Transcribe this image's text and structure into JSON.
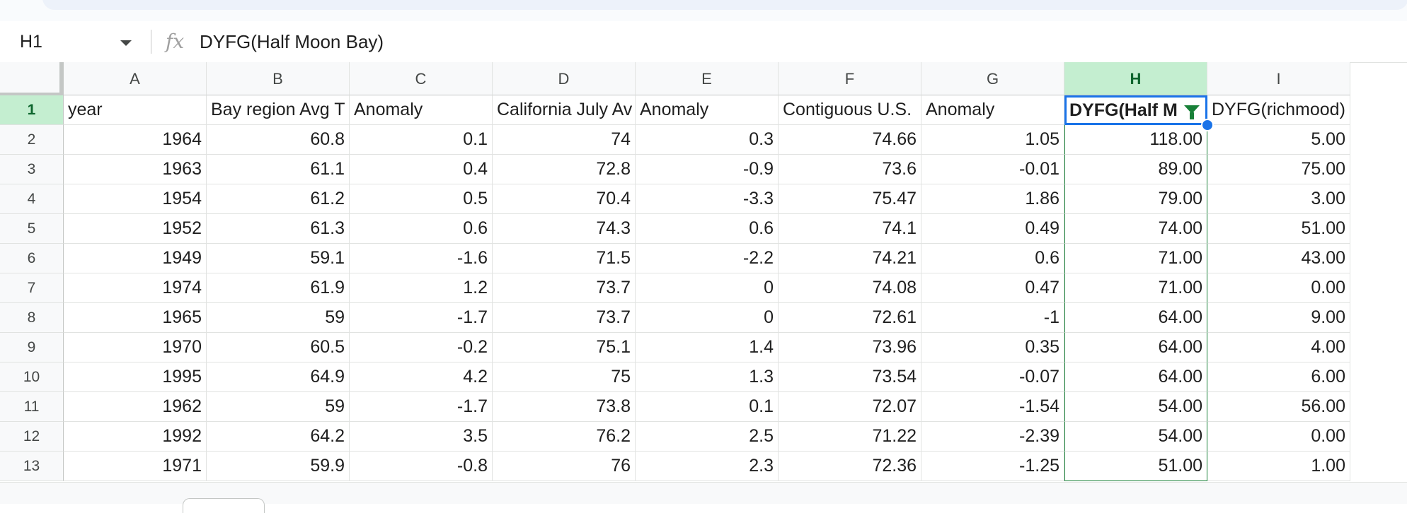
{
  "formula_bar": {
    "name_box": "H1",
    "formula": "DYFG(Half Moon Bay)"
  },
  "columns": [
    "A",
    "B",
    "C",
    "D",
    "E",
    "F",
    "G",
    "H",
    "I"
  ],
  "selected": {
    "column": "H",
    "row": "1"
  },
  "header_row": {
    "row": "1",
    "cells": [
      "year",
      "Bay region Avg T",
      "Anomaly",
      "California July Av",
      "Anomaly",
      "Contiguous U.S.",
      "Anomaly",
      "DYFG(Half M",
      "DYFG(richmood)"
    ]
  },
  "rows": [
    {
      "row": "2",
      "cells": [
        "1964",
        "60.8",
        "0.1",
        "74",
        "0.3",
        "74.66",
        "1.05",
        "118.00",
        "5.00"
      ]
    },
    {
      "row": "3",
      "cells": [
        "1963",
        "61.1",
        "0.4",
        "72.8",
        "-0.9",
        "73.6",
        "-0.01",
        "89.00",
        "75.00"
      ]
    },
    {
      "row": "4",
      "cells": [
        "1954",
        "61.2",
        "0.5",
        "70.4",
        "-3.3",
        "75.47",
        "1.86",
        "79.00",
        "3.00"
      ]
    },
    {
      "row": "5",
      "cells": [
        "1952",
        "61.3",
        "0.6",
        "74.3",
        "0.6",
        "74.1",
        "0.49",
        "74.00",
        "51.00"
      ]
    },
    {
      "row": "6",
      "cells": [
        "1949",
        "59.1",
        "-1.6",
        "71.5",
        "-2.2",
        "74.21",
        "0.6",
        "71.00",
        "43.00"
      ]
    },
    {
      "row": "7",
      "cells": [
        "1974",
        "61.9",
        "1.2",
        "73.7",
        "0",
        "74.08",
        "0.47",
        "71.00",
        "0.00"
      ]
    },
    {
      "row": "8",
      "cells": [
        "1965",
        "59",
        "-1.7",
        "73.7",
        "0",
        "72.61",
        "-1",
        "64.00",
        "9.00"
      ]
    },
    {
      "row": "9",
      "cells": [
        "1970",
        "60.5",
        "-0.2",
        "75.1",
        "1.4",
        "73.96",
        "0.35",
        "64.00",
        "4.00"
      ]
    },
    {
      "row": "10",
      "cells": [
        "1995",
        "64.9",
        "4.2",
        "75",
        "1.3",
        "73.54",
        "-0.07",
        "64.00",
        "6.00"
      ]
    },
    {
      "row": "11",
      "cells": [
        "1962",
        "59",
        "-1.7",
        "73.8",
        "0.1",
        "72.07",
        "-1.54",
        "54.00",
        "56.00"
      ]
    },
    {
      "row": "12",
      "cells": [
        "1992",
        "64.2",
        "3.5",
        "76.2",
        "2.5",
        "71.22",
        "-2.39",
        "54.00",
        "0.00"
      ]
    },
    {
      "row": "13",
      "cells": [
        "1971",
        "59.9",
        "-0.8",
        "76",
        "2.3",
        "72.36",
        "-1.25",
        "51.00",
        "1.00"
      ]
    }
  ],
  "colors": {
    "selection_green": "#188038",
    "selection_header_bg": "#c4eed0",
    "active_border": "#1a73e8"
  },
  "icons": {
    "formula": "fx-icon",
    "dropdown": "chevron-down-icon",
    "filter": "filter-icon"
  }
}
